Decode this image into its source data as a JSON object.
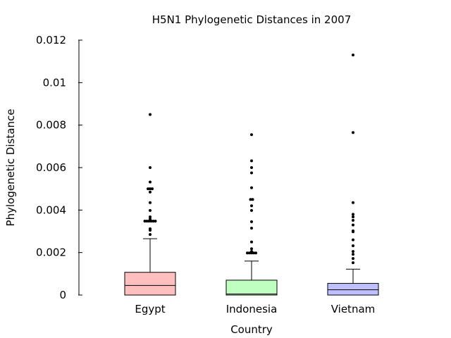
{
  "chart_data": {
    "type": "box",
    "title": "H5N1 Phylogenetic Distances in 2007",
    "xlabel": "Country",
    "ylabel": "Phylogenetic Distance",
    "ylim": [
      0,
      0.012
    ],
    "yticks": [
      0,
      0.002,
      0.004,
      0.006,
      0.008,
      0.01,
      0.012
    ],
    "ytick_labels": [
      "0",
      "0.002",
      "0.004",
      "0.006",
      "0.008",
      "0.01",
      "0.012"
    ],
    "grid": false,
    "legend": "none",
    "boxes": [
      {
        "category": "Egypt",
        "color": "#ffbfbf",
        "whisker_low": 0,
        "q1": 0,
        "median": 0.00045,
        "q3": 0.00107,
        "whisker_high": 0.00265,
        "outliers": [
          0.00285,
          0.00305,
          0.00312,
          0.00348,
          0.00348,
          0.00348,
          0.00348,
          0.00348,
          0.00348,
          0.00358,
          0.00368,
          0.00398,
          0.00435,
          0.00485,
          0.005,
          0.005,
          0.005,
          0.00532,
          0.006,
          0.0085
        ]
      },
      {
        "category": "Indonesia",
        "color": "#bfffbf",
        "whisker_low": 0,
        "q1": 0,
        "median": 5e-05,
        "q3": 0.0007,
        "whisker_high": 0.0016,
        "outliers": [
          0.00198,
          0.00198,
          0.00198,
          0.00198,
          0.00198,
          0.00205,
          0.00218,
          0.0025,
          0.00315,
          0.00345,
          0.00398,
          0.0042,
          0.0045,
          0.0045,
          0.00505,
          0.00575,
          0.006,
          0.00632,
          0.00755
        ]
      },
      {
        "category": "Vietnam",
        "color": "#bfbfff",
        "whisker_low": 0,
        "q1": 0,
        "median": 0.00025,
        "q3": 0.00055,
        "whisker_high": 0.00122,
        "outliers": [
          0.00152,
          0.00172,
          0.00192,
          0.00205,
          0.00232,
          0.0026,
          0.00298,
          0.003,
          0.00302,
          0.0033,
          0.00352,
          0.00368,
          0.0038,
          0.00435,
          0.00765,
          0.0113
        ]
      }
    ]
  }
}
